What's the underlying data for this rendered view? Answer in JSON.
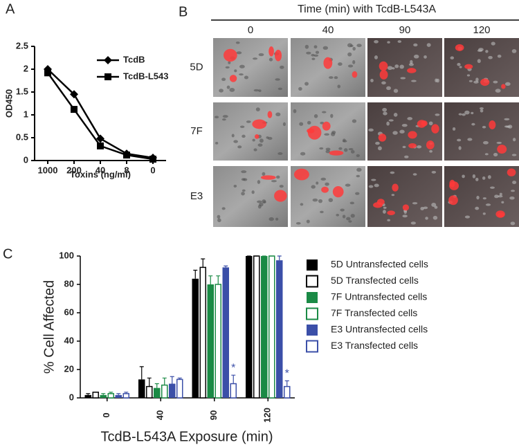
{
  "panel_labels": [
    "A",
    "B",
    "C"
  ],
  "chart_data": [
    {
      "type": "line",
      "x_label": "Toxins (ng/ml)",
      "y_label": "OD450",
      "categories": [
        "1000",
        "200",
        "40",
        "8",
        "0"
      ],
      "ylim": [
        0,
        2.5
      ],
      "yticks": [
        0,
        0.5,
        1,
        1.5,
        2,
        2.5
      ],
      "series": [
        {
          "name": "TcdB",
          "color": "#000000",
          "marker": "diamond",
          "values": [
            2.0,
            1.45,
            0.48,
            0.15,
            0.06
          ]
        },
        {
          "name": "TcdB-L543",
          "color": "#000000",
          "marker": "square",
          "values": [
            1.92,
            1.12,
            0.32,
            0.12,
            0.03
          ]
        }
      ]
    },
    {
      "type": "bar",
      "x_label": "TcdB-L543A Exposure (min)",
      "y_label": "% Cell Affected",
      "categories": [
        "0",
        "40",
        "90",
        "120"
      ],
      "ylim": [
        0,
        100
      ],
      "yticks": [
        0,
        20,
        40,
        60,
        80,
        100
      ],
      "series": [
        {
          "name": "5D Untransfected cells",
          "color": "#000000",
          "filled": true,
          "values": [
            2,
            13,
            84,
            100
          ],
          "errors": [
            1,
            9,
            6,
            0
          ]
        },
        {
          "name": "5D Transfected cells",
          "color": "#000000",
          "filled": false,
          "values": [
            4,
            8,
            92,
            100
          ],
          "errors": [
            0,
            6,
            6,
            0
          ]
        },
        {
          "name": "7F Untransfected cells",
          "color": "#1a8a45",
          "filled": true,
          "values": [
            2,
            7,
            80,
            100
          ],
          "errors": [
            1,
            3,
            6,
            0
          ]
        },
        {
          "name": "7F Transfected cells",
          "color": "#1a8a45",
          "filled": false,
          "values": [
            3,
            9,
            80,
            100
          ],
          "errors": [
            1,
            5,
            6,
            0
          ]
        },
        {
          "name": "E3 Untransfected cells",
          "color": "#3b4fa8",
          "filled": true,
          "values": [
            2,
            10,
            92,
            97
          ],
          "errors": [
            1,
            5,
            1,
            3
          ]
        },
        {
          "name": "E3 Transfected cells",
          "color": "#3b4fa8",
          "filled": false,
          "values": [
            3,
            13,
            10,
            8
          ],
          "errors": [
            1,
            1,
            6,
            4
          ],
          "significance": [
            null,
            null,
            "*",
            "*"
          ]
        }
      ]
    }
  ],
  "image_grid": {
    "title": "Time (min) with TcdB-L543A",
    "columns": [
      "0",
      "40",
      "90",
      "120"
    ],
    "rows": [
      "5D",
      "7F",
      "E3"
    ]
  }
}
